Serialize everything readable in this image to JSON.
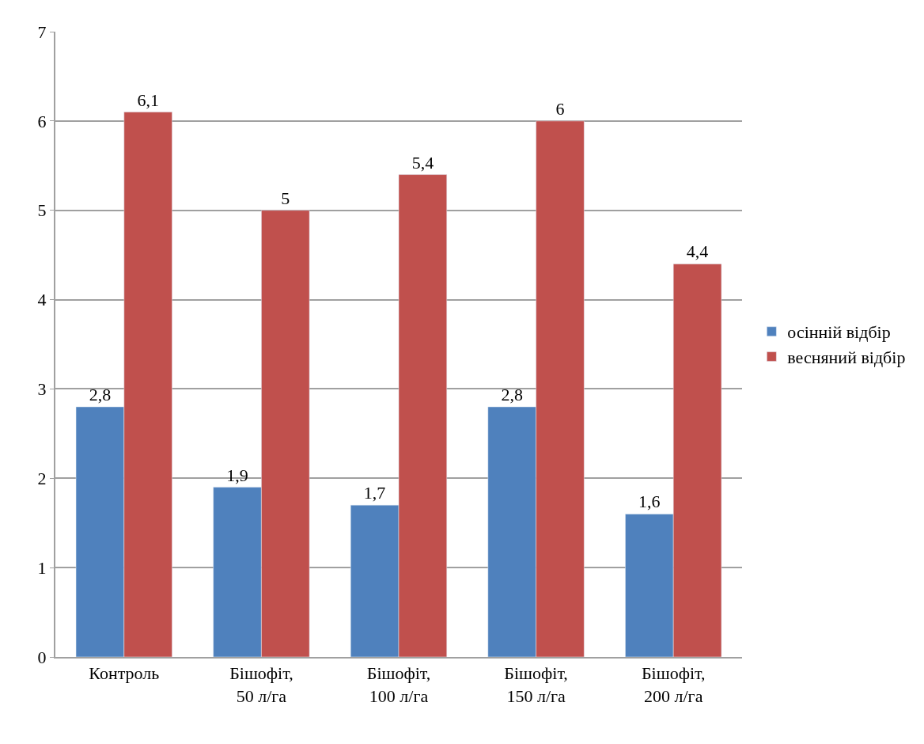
{
  "chart_data": {
    "type": "bar",
    "categories": [
      "Контроль",
      "Бішофіт,\n50 л/га",
      "Бішофіт,\n100 л/га",
      "Бішофіт,\n150 л/га",
      "Бішофіт,\n200 л/га"
    ],
    "series": [
      {
        "name": "осінній відбір",
        "color": "#4f81bd",
        "values": [
          2.8,
          1.9,
          1.7,
          2.8,
          1.6
        ],
        "value_labels": [
          "2,8",
          "1,9",
          "1,7",
          "2,8",
          "1,6"
        ]
      },
      {
        "name": "весняний відбір",
        "color": "#c0504d",
        "values": [
          6.1,
          5,
          5.4,
          6,
          4.4
        ],
        "value_labels": [
          "6,1",
          "5",
          "5,4",
          "6",
          "4,4"
        ]
      }
    ],
    "ylim": [
      0,
      7
    ],
    "yticks": [
      0,
      1,
      2,
      3,
      4,
      5,
      6,
      7
    ],
    "grid": "y",
    "legend": "right"
  }
}
